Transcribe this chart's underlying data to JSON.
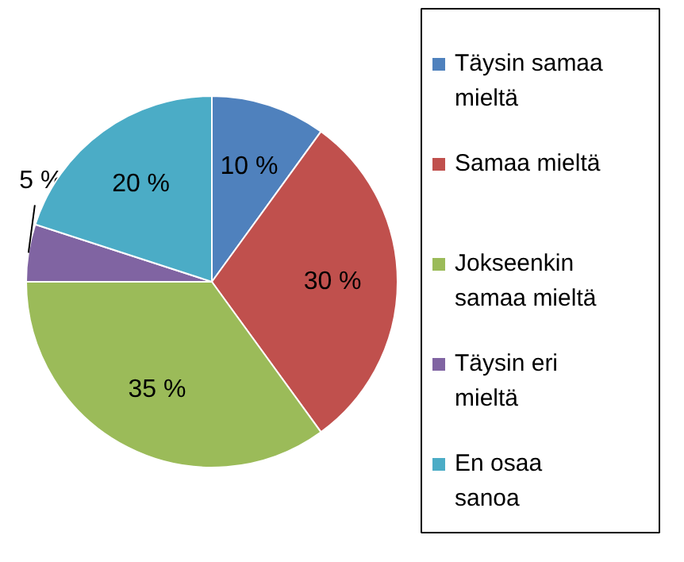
{
  "chart_data": {
    "type": "pie",
    "categories": [
      "Täysin samaa mieltä",
      "Samaa mieltä",
      "Jokseenkin samaa mieltä",
      "Täysin eri mieltä",
      "En osaa sanoa"
    ],
    "values": [
      10,
      30,
      35,
      5,
      20
    ],
    "colors": [
      "#4f81bd",
      "#c0504d",
      "#9bbb59",
      "#8064a2",
      "#4bacc6"
    ],
    "value_labels": [
      "10 %",
      "30 %",
      "35 %",
      "5 %",
      "20 %"
    ],
    "legend": "right"
  }
}
